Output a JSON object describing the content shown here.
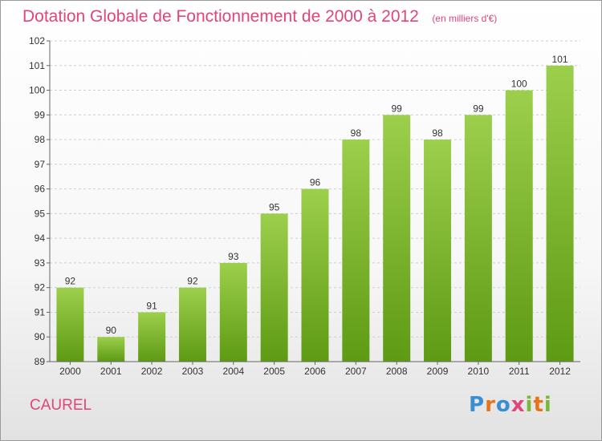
{
  "title": "Dotation Globale de Fonctionnement de 2000 à 2012",
  "unit_note": "(en milliers d'€)",
  "commune": "CAUREL",
  "logo": {
    "text": "Proxiti",
    "letter_colors": [
      "#3a8fd0",
      "#e8731b",
      "#3a8fd0",
      "#e0457b",
      "#7bb83a",
      "#e8731b",
      "#7bb83a"
    ]
  },
  "colors": {
    "bar_top": "#9ccf4c",
    "bar_bottom": "#5e9a14",
    "accent": "#e0457b",
    "grid": "#cfcfcf"
  },
  "chart_data": {
    "type": "bar",
    "title": "Dotation Globale de Fonctionnement de 2000 à 2012",
    "xlabel": "",
    "ylabel": "",
    "categories": [
      "2000",
      "2001",
      "2002",
      "2003",
      "2004",
      "2005",
      "2006",
      "2007",
      "2008",
      "2009",
      "2010",
      "2011",
      "2012"
    ],
    "values": [
      92,
      90,
      91,
      92,
      93,
      95,
      96,
      98,
      99,
      98,
      99,
      100,
      101
    ],
    "data_labels": [
      "92",
      "90",
      "91",
      "92",
      "93",
      "95",
      "96",
      "98",
      "99",
      "98",
      "99",
      "100",
      "101"
    ],
    "ylim": [
      89,
      102
    ],
    "yticks": [
      89,
      90,
      91,
      92,
      93,
      94,
      95,
      96,
      97,
      98,
      99,
      100,
      101,
      102
    ],
    "ytick_labels": [
      "89",
      "90",
      "91",
      "92",
      "93",
      "94",
      "95",
      "96",
      "97",
      "98",
      "99",
      "100",
      "101",
      "102"
    ],
    "grid": "horizontal-dashed",
    "legend": "none"
  }
}
